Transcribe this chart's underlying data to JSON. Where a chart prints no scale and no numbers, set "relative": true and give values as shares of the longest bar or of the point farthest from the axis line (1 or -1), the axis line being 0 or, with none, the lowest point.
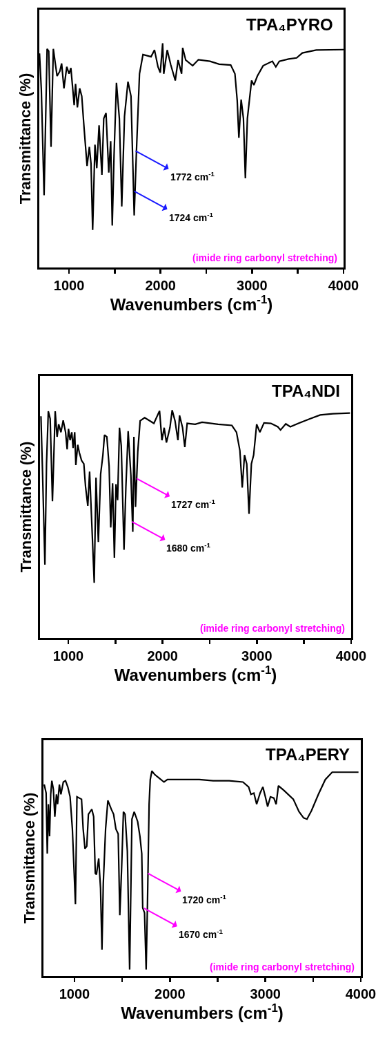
{
  "chart_data": [
    {
      "type": "line",
      "title": "TPA₄PYRO",
      "xlabel": "Wavenumbers (cm$^{-1}$)",
      "ylabel": "Transmittance (%)",
      "relative": true,
      "tick_labels": "x",
      "xlim": [
        675,
        4000
      ],
      "xticks": [
        1000,
        {
          "value": 1500,
          "label": null
        },
        2000,
        {
          "value": 2500,
          "label": null
        },
        3000,
        {
          "value": 3500,
          "label": null
        },
        4000
      ],
      "x": [
        677,
        697,
        727,
        760,
        778,
        803,
        828,
        848,
        869,
        899,
        919,
        944,
        975,
        1000,
        1020,
        1056,
        1071,
        1091,
        1116,
        1139,
        1164,
        1197,
        1222,
        1240,
        1258,
        1283,
        1303,
        1328,
        1359,
        1379,
        1404,
        1434,
        1455,
        1472,
        1492,
        1518,
        1550,
        1576,
        1606,
        1644,
        1677,
        1712,
        1737,
        1770,
        1808,
        1896,
        1934,
        1972,
        1997,
        2023,
        2035,
        2073,
        2111,
        2161,
        2192,
        2230,
        2242,
        2275,
        2351,
        2414,
        2540,
        2641,
        2767,
        2813,
        2838,
        2856,
        2881,
        2906,
        2927,
        2949,
        2995,
        3020,
        3058,
        3121,
        3222,
        3260,
        3298,
        3399,
        3487,
        3550,
        3702,
        4000
      ],
      "series": [
        {
          "color": "#000000",
          "values": [
            0.955,
            0.794,
            0.322,
            0.975,
            0.965,
            0.538,
            0.975,
            0.915,
            0.854,
            0.875,
            0.91,
            0.799,
            0.895,
            0.864,
            0.89,
            0.724,
            0.819,
            0.714,
            0.799,
            0.764,
            0.623,
            0.453,
            0.538,
            0.463,
            0.167,
            0.548,
            0.443,
            0.634,
            0.413,
            0.664,
            0.689,
            0.423,
            0.563,
            0.187,
            0.503,
            0.824,
            0.664,
            0.272,
            0.674,
            0.829,
            0.764,
            0.232,
            0.523,
            0.864,
            0.95,
            0.94,
            0.97,
            0.895,
            0.869,
            1.0,
            0.864,
            0.97,
            0.905,
            0.834,
            0.925,
            0.864,
            0.98,
            0.925,
            0.9,
            0.927,
            0.92,
            0.907,
            0.903,
            0.864,
            0.744,
            0.578,
            0.749,
            0.664,
            0.398,
            0.664,
            0.834,
            0.814,
            0.854,
            0.9,
            0.92,
            0.895,
            0.92,
            0.93,
            0.935,
            0.957,
            0.97,
            0.972
          ]
        }
      ],
      "annotations": [
        {
          "text": "1772 cm$^{-1}$",
          "x": 1727,
          "y": 0.52
        },
        {
          "text": "1724 cm$^{-1}$",
          "x": 1712,
          "y": 0.34
        },
        "(imide ring carbonyl stretching)"
      ]
    },
    {
      "type": "line",
      "title": "TPA₄NDI",
      "xlabel": "Wavenumbers (cm$^{-1}$)",
      "ylabel": "Transmittance (%)",
      "relative": true,
      "tick_labels": "x",
      "xlim": [
        700,
        4000
      ],
      "xticks": [
        1000,
        {
          "value": 1500,
          "label": null
        },
        2000,
        {
          "value": 2500,
          "label": null
        },
        3000,
        {
          "value": 3500,
          "label": null
        },
        4000
      ],
      "x": [
        710,
        727,
        752,
        769,
        788,
        808,
        832,
        861,
        881,
        898,
        922,
        946,
        971,
        988,
        1002,
        1019,
        1037,
        1051,
        1068,
        1080,
        1100,
        1117,
        1141,
        1165,
        1183,
        1207,
        1226,
        1251,
        1275,
        1294,
        1319,
        1343,
        1367,
        1384,
        1409,
        1433,
        1450,
        1470,
        1489,
        1506,
        1523,
        1543,
        1562,
        1591,
        1611,
        1635,
        1664,
        1684,
        1696,
        1713,
        1737,
        1762,
        1810,
        1908,
        1968,
        1993,
        2017,
        2041,
        2078,
        2102,
        2132,
        2163,
        2180,
        2212,
        2236,
        2261,
        2346,
        2419,
        2589,
        2735,
        2784,
        2820,
        2845,
        2869,
        2893,
        2917,
        2942,
        2966,
        2998,
        3032,
        3076,
        3149,
        3222,
        3251,
        3307,
        3355,
        3441,
        3562,
        3672,
        3806,
        3988
      ],
      "series": [
        {
          "color": "#000000",
          "values": [
            0.973,
            0.724,
            0.322,
            0.764,
            0.995,
            0.962,
            0.6,
            0.995,
            0.883,
            0.938,
            0.903,
            0.955,
            0.903,
            0.828,
            0.918,
            0.868,
            0.903,
            0.834,
            0.903,
            0.759,
            0.848,
            0.814,
            0.779,
            0.764,
            0.664,
            0.58,
            0.73,
            0.485,
            0.242,
            0.704,
            0.421,
            0.719,
            0.803,
            0.891,
            0.883,
            0.754,
            0.485,
            0.679,
            0.352,
            0.675,
            0.605,
            0.923,
            0.843,
            0.387,
            0.664,
            0.908,
            0.714,
            0.466,
            0.883,
            0.575,
            0.818,
            0.953,
            0.967,
            0.942,
            0.997,
            0.868,
            0.923,
            0.858,
            0.923,
            1.0,
            0.953,
            0.868,
            0.977,
            0.923,
            0.838,
            0.942,
            0.938,
            0.947,
            0.938,
            0.933,
            0.903,
            0.823,
            0.66,
            0.803,
            0.764,
            0.545,
            0.764,
            0.803,
            0.938,
            0.903,
            0.944,
            0.942,
            0.927,
            0.913,
            0.94,
            0.927,
            0.942,
            0.962,
            0.979,
            0.984,
            0.987
          ]
        }
      ],
      "annotations": [
        {
          "text": "1727 cm$^{-1}$",
          "x": 1725,
          "y": 0.7
        },
        {
          "text": "1680 cm$^{-1}$",
          "x": 1676,
          "y": 0.51
        },
        "(imide ring carbonyl stretching)"
      ]
    },
    {
      "type": "line",
      "title": "TPA₄PERY",
      "xlabel": "Wavenumbers (cm$^{-1}$)",
      "ylabel": "Transmittance (%)",
      "relative": true,
      "tick_labels": "x",
      "xlim": [
        675,
        4000
      ],
      "xticks": [
        1000,
        {
          "value": 1500,
          "label": null
        },
        2000,
        {
          "value": 2500,
          "label": null
        },
        3000,
        {
          "value": 3500,
          "label": null
        },
        4000
      ],
      "x": [
        683,
        703,
        715,
        727,
        739,
        751,
        763,
        779,
        794,
        811,
        823,
        842,
        858,
        883,
        906,
        930,
        954,
        978,
        1010,
        1026,
        1050,
        1074,
        1091,
        1110,
        1129,
        1146,
        1182,
        1201,
        1218,
        1230,
        1254,
        1273,
        1288,
        1302,
        1326,
        1350,
        1386,
        1410,
        1434,
        1458,
        1475,
        1494,
        1513,
        1530,
        1554,
        1578,
        1602,
        1626,
        1662,
        1686,
        1705,
        1715,
        1734,
        1751,
        1765,
        1782,
        1794,
        1811,
        1842,
        1890,
        1938,
        1974,
        2141,
        2309,
        2453,
        2621,
        2765,
        2825,
        2849,
        2880,
        2909,
        2945,
        2974,
        3000,
        3024,
        3053,
        3089,
        3113,
        3137,
        3197,
        3293,
        3353,
        3401,
        3436,
        3484,
        3556,
        3628,
        3700,
        3820,
        3976
      ],
      "series": [
        {
          "color": "#000000",
          "values": [
            0.934,
            0.892,
            0.597,
            0.838,
            0.681,
            0.886,
            0.952,
            0.91,
            0.777,
            0.886,
            0.838,
            0.934,
            0.886,
            0.946,
            0.952,
            0.922,
            0.874,
            0.717,
            0.35,
            0.874,
            0.868,
            0.862,
            0.717,
            0.621,
            0.633,
            0.789,
            0.813,
            0.777,
            0.501,
            0.495,
            0.573,
            0.428,
            0.128,
            0.452,
            0.717,
            0.856,
            0.813,
            0.789,
            0.717,
            0.693,
            0.296,
            0.525,
            0.801,
            0.789,
            0.609,
            0.031,
            0.765,
            0.801,
            0.753,
            0.681,
            0.597,
            0.332,
            0.308,
            0.031,
            0.356,
            0.838,
            0.958,
            1.0,
            0.982,
            0.964,
            0.946,
            0.958,
            0.958,
            0.958,
            0.952,
            0.952,
            0.946,
            0.922,
            0.886,
            0.892,
            0.838,
            0.892,
            0.922,
            0.874,
            0.826,
            0.874,
            0.868,
            0.838,
            0.928,
            0.904,
            0.862,
            0.801,
            0.771,
            0.765,
            0.807,
            0.886,
            0.958,
            0.994,
            0.994,
            0.994
          ]
        }
      ],
      "annotations": [
        {
          "text": "1720 cm$^{-1}$",
          "x": 1770,
          "y": 0.5
        },
        {
          "text": "1670 cm$^{-1}$",
          "x": 1729,
          "y": 0.33
        },
        "(imide ring carbonyl stretching)"
      ]
    }
  ]
}
